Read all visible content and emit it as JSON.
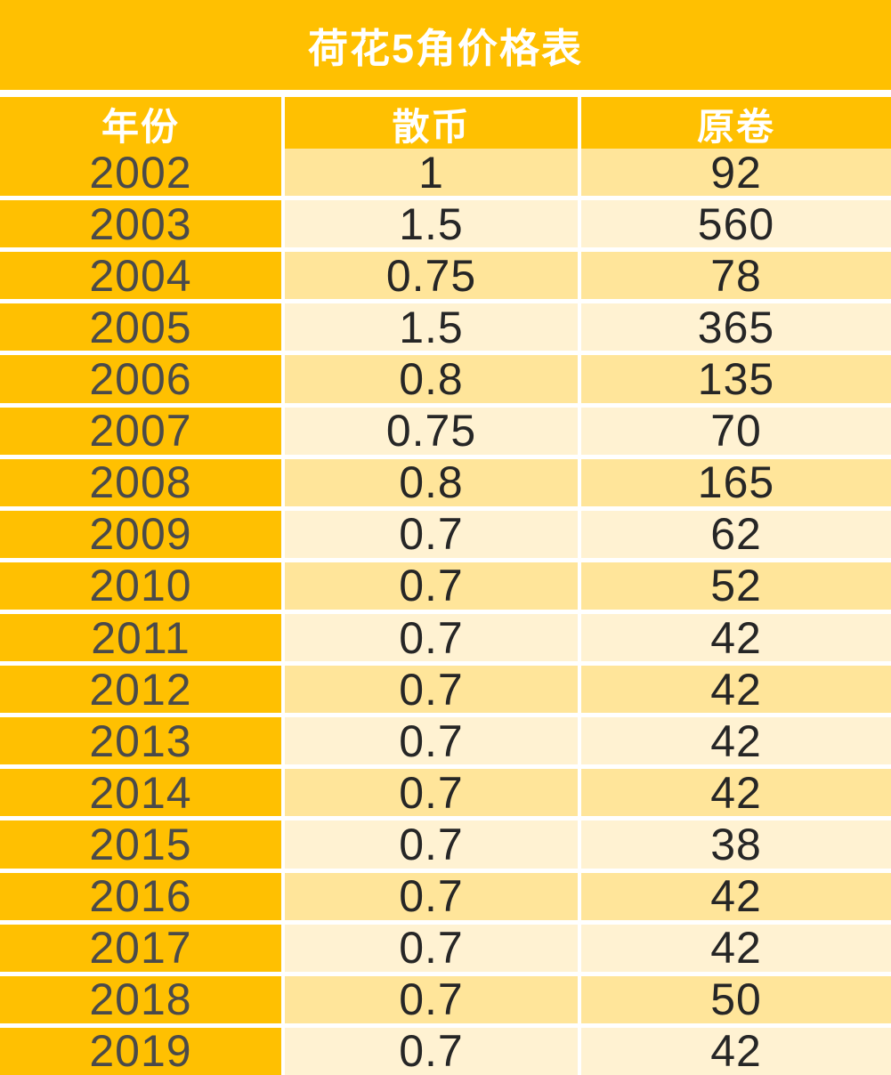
{
  "table": {
    "title": "荷花5角价格表",
    "headers": [
      "年份",
      "散币",
      "原卷"
    ],
    "rows": [
      [
        "2002",
        "1",
        "92"
      ],
      [
        "2003",
        "1.5",
        "560"
      ],
      [
        "2004",
        "0.75",
        "78"
      ],
      [
        "2005",
        "1.5",
        "365"
      ],
      [
        "2006",
        "0.8",
        "135"
      ],
      [
        "2007",
        "0.75",
        "70"
      ],
      [
        "2008",
        "0.8",
        "165"
      ],
      [
        "2009",
        "0.7",
        "62"
      ],
      [
        "2010",
        "0.7",
        "52"
      ],
      [
        "2011",
        "0.7",
        "42"
      ],
      [
        "2012",
        "0.7",
        "42"
      ],
      [
        "2013",
        "0.7",
        "42"
      ],
      [
        "2014",
        "0.7",
        "42"
      ],
      [
        "2015",
        "0.7",
        "38"
      ],
      [
        "2016",
        "0.7",
        "42"
      ],
      [
        "2017",
        "0.7",
        "42"
      ],
      [
        "2018",
        "0.7",
        "50"
      ],
      [
        "2019",
        "0.7",
        "42"
      ]
    ]
  },
  "chart_data": {
    "type": "table",
    "title": "荷花5角价格表",
    "columns": [
      "年份",
      "散币",
      "原卷"
    ],
    "rows": [
      [
        "2002",
        1,
        92
      ],
      [
        "2003",
        1.5,
        560
      ],
      [
        "2004",
        0.75,
        78
      ],
      [
        "2005",
        1.5,
        365
      ],
      [
        "2006",
        0.8,
        135
      ],
      [
        "2007",
        0.75,
        70
      ],
      [
        "2008",
        0.8,
        165
      ],
      [
        "2009",
        0.7,
        62
      ],
      [
        "2010",
        0.7,
        52
      ],
      [
        "2011",
        0.7,
        42
      ],
      [
        "2012",
        0.7,
        42
      ],
      [
        "2013",
        0.7,
        42
      ],
      [
        "2014",
        0.7,
        42
      ],
      [
        "2015",
        0.7,
        38
      ],
      [
        "2016",
        0.7,
        42
      ],
      [
        "2017",
        0.7,
        42
      ],
      [
        "2018",
        0.7,
        50
      ],
      [
        "2019",
        0.7,
        42
      ]
    ]
  },
  "colors": {
    "accent_orange": "#FFC001",
    "row_band_dark": "#FFE59A",
    "row_band_light": "#FFF2D2",
    "divider_white": "#FFFFFF",
    "header_text": "#FFFFFF",
    "year_text": "#4A4A4A",
    "value_text": "#262626"
  }
}
